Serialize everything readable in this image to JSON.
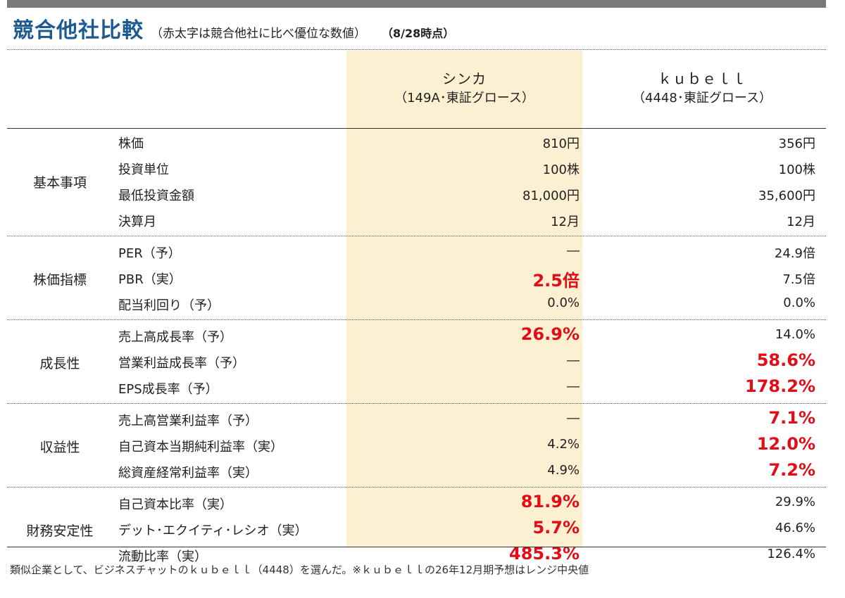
{
  "header": {
    "title": "競合他社比較",
    "subtitle": "（赤太字は競合他社に比べ優位な数値）",
    "as_of": "（8/28時点）"
  },
  "columns": [
    {
      "name": "シンカ",
      "sub": "（149A･東証グロース）"
    },
    {
      "name": "ｋｕｂｅｌｌ",
      "sub": "（4448･東証グロース）"
    }
  ],
  "groups": [
    {
      "label": "基本事項",
      "rows": [
        {
          "metric": "株価",
          "v1": "810円",
          "v1_highlight": false,
          "v2": "356円",
          "v2_highlight": false
        },
        {
          "metric": "投資単位",
          "v1": "100株",
          "v1_highlight": false,
          "v2": "100株",
          "v2_highlight": false
        },
        {
          "metric": "最低投資金額",
          "v1": "81,000円",
          "v1_highlight": false,
          "v2": "35,600円",
          "v2_highlight": false
        },
        {
          "metric": "決算月",
          "v1": "12月",
          "v1_highlight": false,
          "v2": "12月",
          "v2_highlight": false
        }
      ]
    },
    {
      "label": "株価指標",
      "rows": [
        {
          "metric": "PER（予）",
          "v1": "―",
          "v1_highlight": false,
          "v2": "24.9倍",
          "v2_highlight": false
        },
        {
          "metric": "PBR（実）",
          "v1": "2.5倍",
          "v1_highlight": true,
          "v2": "7.5倍",
          "v2_highlight": false
        },
        {
          "metric": "配当利回り（予）",
          "v1": "0.0%",
          "v1_highlight": false,
          "v2": "0.0%",
          "v2_highlight": false
        }
      ]
    },
    {
      "label": "成長性",
      "rows": [
        {
          "metric": "売上高成長率（予）",
          "v1": "26.9%",
          "v1_highlight": true,
          "v2": "14.0%",
          "v2_highlight": false
        },
        {
          "metric": "営業利益成長率（予）",
          "v1": "―",
          "v1_highlight": false,
          "v2": "58.6%",
          "v2_highlight": true
        },
        {
          "metric": "EPS成長率（予）",
          "v1": "―",
          "v1_highlight": false,
          "v2": "178.2%",
          "v2_highlight": true
        }
      ]
    },
    {
      "label": "収益性",
      "rows": [
        {
          "metric": "売上高営業利益率（予）",
          "v1": "―",
          "v1_highlight": false,
          "v2": "7.1%",
          "v2_highlight": true
        },
        {
          "metric": "自己資本当期純利益率（実）",
          "v1": "4.2%",
          "v1_highlight": false,
          "v2": "12.0%",
          "v2_highlight": true
        },
        {
          "metric": "総資産経常利益率（実）",
          "v1": "4.9%",
          "v1_highlight": false,
          "v2": "7.2%",
          "v2_highlight": true
        }
      ]
    },
    {
      "label": "財務安定性",
      "rows": [
        {
          "metric": "自己資本比率（実）",
          "v1": "81.9%",
          "v1_highlight": true,
          "v2": "29.9%",
          "v2_highlight": false
        },
        {
          "metric": "デット･エクイティ･レシオ（実）",
          "v1": "5.7%",
          "v1_highlight": true,
          "v2": "46.6%",
          "v2_highlight": false
        },
        {
          "metric": "流動比率（実）",
          "v1": "485.3%",
          "v1_highlight": true,
          "v2": "126.4%",
          "v2_highlight": false
        }
      ]
    }
  ],
  "footnote": "類似企業として、ビジネスチャットのｋｕｂｅｌｌ（4448）を選んだ。※ｋｕｂｅｌｌの26年12月期予想はレンジ中央値",
  "colors": {
    "title": "#1c5a8f",
    "highlight": "#e30d17",
    "column_bg": "#fbf0d2"
  }
}
